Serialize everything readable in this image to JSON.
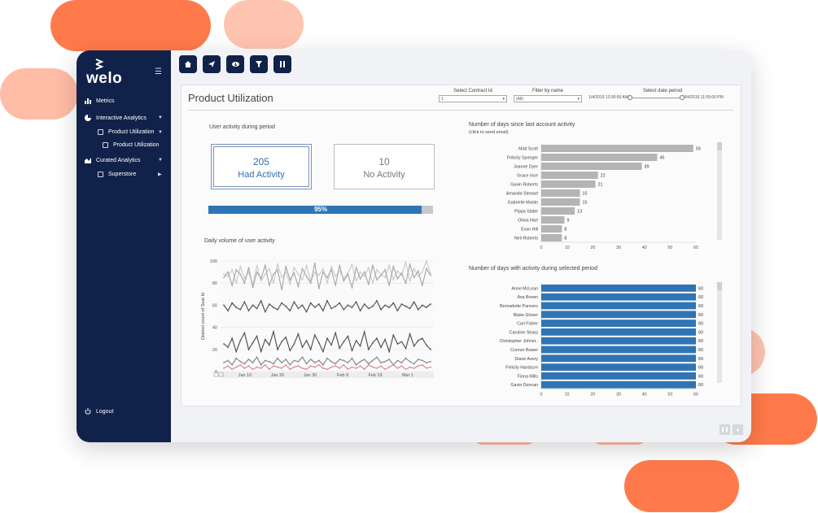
{
  "app": {
    "logo_text": "welo",
    "page_title": "Product Utilization"
  },
  "sidebar": {
    "items": [
      {
        "label": "Metrics",
        "icon": "bar-chart-icon"
      },
      {
        "label": "Interactive Analytics",
        "icon": "pie-chart-icon"
      },
      {
        "label": "Product Utilization",
        "icon": "dashboard-box-icon"
      },
      {
        "label": "Product Utilization",
        "icon": "dashboard-box-icon"
      },
      {
        "label": "Curated Analytics",
        "icon": "area-chart-icon"
      },
      {
        "label": "Superstore",
        "icon": "dashboard-box-icon"
      }
    ],
    "logout_label": "Logout"
  },
  "toolbar": {
    "buttons": [
      "home-icon",
      "share-icon",
      "download-icon",
      "filter-icon",
      "pause-icon"
    ]
  },
  "filters": {
    "contract": {
      "label": "Select Contract Id",
      "value": "1"
    },
    "name": {
      "label": "Filter by name",
      "value": "(All)"
    },
    "date": {
      "label": "Select date period",
      "start": "1/4/2019 12:00:00 AM",
      "end": "3/4/2019 11:59:00 PM"
    }
  },
  "activity": {
    "title": "User activity during period",
    "had": {
      "value": "205",
      "label": "Had Activity"
    },
    "no": {
      "value": "10",
      "label": "No Activity"
    },
    "percent": 95,
    "percent_label": "95%"
  },
  "colors": {
    "navy": "#11224a",
    "accent_blue": "#2f74b5",
    "bar_gray": "#b4b4b4",
    "blob_orange": "#ff7a4a",
    "blob_peach": "#ffc4b0"
  },
  "chart_data": [
    {
      "type": "line",
      "title": "Daily volume of user activity",
      "ylabel": "Distinct count of Seat Id",
      "ylim": [
        0,
        100
      ],
      "yticks": [
        0,
        20,
        40,
        60,
        80,
        100
      ],
      "x_tick_labels": [
        "Jan 10",
        "Jan 20",
        "Jan 30",
        "Feb 9",
        "Feb 19",
        "Mar 1"
      ],
      "series": [
        {
          "color": "#cccccc",
          "values": [
            88,
            86,
            92,
            80,
            95,
            84,
            90,
            78,
            96,
            82,
            88,
            93,
            80,
            97,
            85,
            90,
            79,
            94,
            88,
            83,
            96,
            81,
            90,
            87,
            93,
            80,
            95,
            86,
            91,
            84,
            89,
            97,
            82,
            90,
            86,
            94,
            80,
            92,
            88,
            85,
            96,
            83,
            91,
            87,
            99,
            82,
            93,
            86,
            90,
            100,
            88
          ]
        },
        {
          "color": "#aaaaaa",
          "values": [
            85,
            90,
            78,
            92,
            88,
            80,
            94,
            76,
            90,
            84,
            96,
            78,
            88,
            92,
            74,
            95,
            83,
            89,
            77,
            93,
            86,
            80,
            98,
            75,
            90,
            85,
            92,
            78,
            96,
            82,
            88,
            76,
            94,
            84,
            90,
            79,
            96,
            83,
            87,
            92,
            78,
            95,
            84,
            89,
            80,
            97,
            85,
            91,
            78,
            93,
            87
          ]
        },
        {
          "color": "#555555",
          "values": [
            60,
            55,
            62,
            58,
            56,
            63,
            55,
            60,
            57,
            64,
            54,
            61,
            58,
            56,
            62,
            59,
            55,
            63,
            57,
            60,
            54,
            62,
            58,
            61,
            55,
            64,
            57,
            59,
            62,
            56,
            60,
            58,
            63,
            55,
            61,
            57,
            59,
            64,
            56,
            60,
            58,
            62,
            55,
            61,
            59,
            57,
            63,
            56,
            60,
            58,
            61
          ]
        },
        {
          "color": "#555555",
          "values": [
            25,
            22,
            30,
            18,
            28,
            35,
            20,
            26,
            32,
            18,
            29,
            24,
            36,
            20,
            27,
            31,
            19,
            25,
            34,
            22,
            28,
            20,
            33,
            26,
            18,
            30,
            24,
            35,
            21,
            27,
            32,
            19,
            28,
            23,
            36,
            20,
            26,
            30,
            22,
            29,
            18,
            33,
            25,
            27,
            21,
            34,
            23,
            28,
            30,
            24,
            20
          ]
        },
        {
          "color": "#888888",
          "values": [
            8,
            10,
            6,
            12,
            9,
            7,
            11,
            8,
            13,
            6,
            10,
            9,
            7,
            12,
            8,
            11,
            6,
            10,
            9,
            13,
            7,
            11,
            8,
            10,
            6,
            12,
            9,
            7,
            11,
            10,
            8,
            12,
            6,
            9,
            11,
            7,
            10,
            13,
            8,
            9,
            11,
            6,
            10,
            8,
            12,
            9,
            7,
            11,
            10,
            8,
            9
          ]
        },
        {
          "color": "#d98a8a",
          "values": [
            3,
            5,
            2,
            4,
            6,
            3,
            5,
            2,
            4,
            3,
            6,
            2,
            5,
            4,
            3,
            6,
            2,
            4,
            5,
            3,
            2,
            5,
            4,
            6,
            3,
            2,
            4,
            5,
            3,
            6,
            2,
            4,
            3,
            5,
            2,
            6,
            4,
            3,
            5,
            2,
            4,
            6,
            3,
            5,
            2,
            4,
            3,
            5,
            6,
            3,
            4
          ]
        }
      ]
    },
    {
      "type": "bar",
      "orientation": "horizontal",
      "title": "Number of days since last account activity",
      "subtitle": "(click to send email)",
      "categories": [
        "Matt Scott",
        "Felicity Springer",
        "Joanne Dyer",
        "Grace Ince",
        "Gavin Roberts",
        "Amanda Stewart",
        "Gabrielle Martin",
        "Pippa Slater",
        "Olivia Hart",
        "Evan Hill",
        "Neil Roberts"
      ],
      "values": [
        59,
        45,
        39,
        22,
        21,
        15,
        15,
        13,
        9,
        8,
        8
      ],
      "xlim": [
        0,
        60
      ],
      "xticks": [
        0,
        10,
        20,
        30,
        40,
        50,
        60
      ],
      "color": "#b4b4b4"
    },
    {
      "type": "bar",
      "orientation": "horizontal",
      "title": "Number of days with activity during selected period",
      "categories": [
        "Anne McLean",
        "Ava Brown",
        "Bernadette Parsons",
        "Blake Glover",
        "Carl Fisher",
        "Caroline Sharp",
        "Christopher Johnst..",
        "Connor Bower",
        "Diane Avery",
        "Felicity Hardacre",
        "Fiona Mills",
        "Gavin Duncan"
      ],
      "values": [
        60,
        60,
        60,
        60,
        60,
        60,
        60,
        60,
        60,
        60,
        60,
        60
      ],
      "xlim": [
        0,
        60
      ],
      "xticks": [
        0,
        10,
        20,
        30,
        40,
        50,
        60
      ],
      "color": "#2f74b5"
    }
  ]
}
